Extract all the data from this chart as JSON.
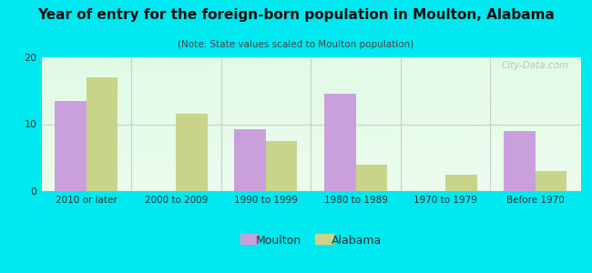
{
  "title": "Year of entry for the foreign-born population in Moulton, Alabama",
  "subtitle": "(Note: State values scaled to Moulton population)",
  "categories": [
    "2010 or later",
    "2000 to 2009",
    "1990 to 1999",
    "1980 to 1989",
    "1970 to 1979",
    "Before 1970"
  ],
  "moulton_values": [
    13.5,
    0,
    9.3,
    14.5,
    0,
    9.0
  ],
  "alabama_values": [
    17.0,
    11.5,
    7.5,
    4.0,
    2.5,
    3.0
  ],
  "moulton_color": "#c9a0dc",
  "alabama_color": "#c8d48a",
  "background_outer": "#00e8f0",
  "ylim": [
    0,
    20
  ],
  "yticks": [
    0,
    10,
    20
  ],
  "bar_width": 0.35,
  "watermark": "City-Data.com",
  "legend_moulton": "Moulton",
  "legend_alabama": "Alabama",
  "title_fontsize": 11,
  "subtitle_fontsize": 7.5,
  "tick_fontsize": 8,
  "xtick_fontsize": 7.5
}
